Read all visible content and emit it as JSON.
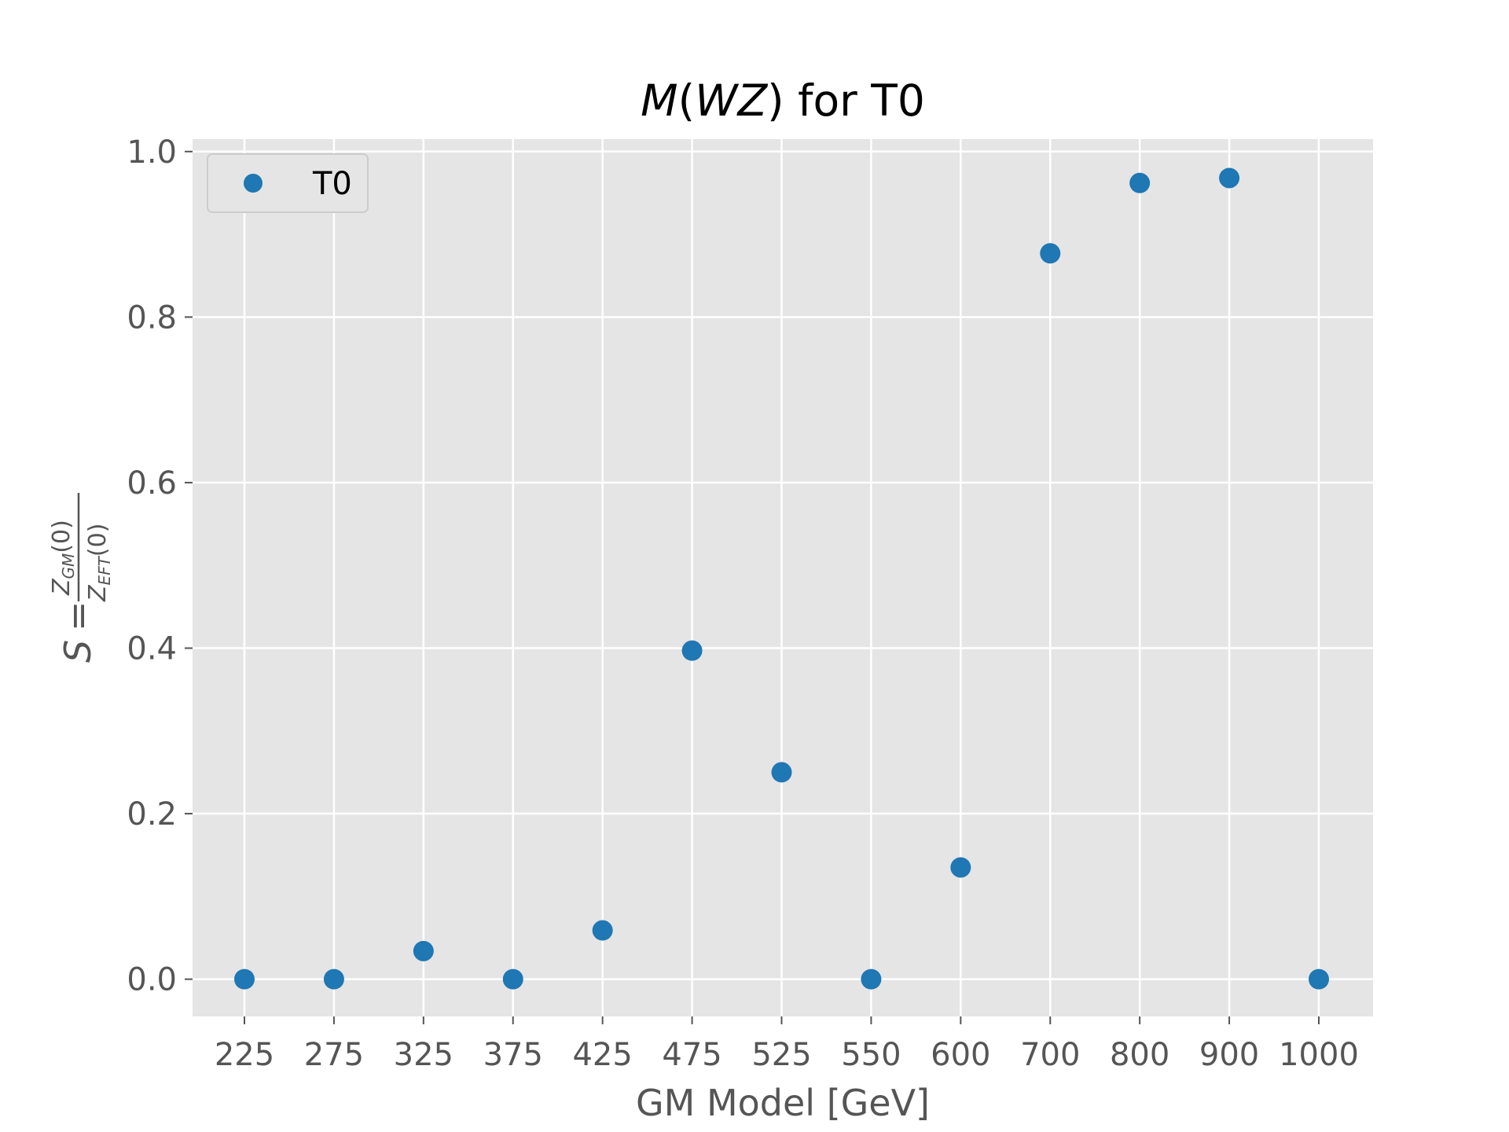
{
  "chart_data": {
    "type": "scatter",
    "title": "M(WZ) for T0",
    "title_parts": {
      "italic_m": "M",
      "open": "(",
      "italic_wz": "WZ",
      "close": ")",
      "rest": " for T0"
    },
    "xlabel": "GM Model [GeV]",
    "ylabel": {
      "lhs": "S",
      "eq": "=",
      "numerator": {
        "z": "Z",
        "sub": "GM",
        "arg": "(0)"
      },
      "denominator": {
        "z": "Z",
        "sub": "EFT",
        "arg": "(0)"
      }
    },
    "categories": [
      "225",
      "275",
      "325",
      "375",
      "425",
      "475",
      "525",
      "550",
      "600",
      "700",
      "800",
      "900",
      "1000"
    ],
    "series": [
      {
        "name": "T0",
        "color": "#1f77b4",
        "values": [
          0.0,
          0.0,
          0.034,
          0.0,
          0.059,
          0.397,
          0.25,
          0.0,
          0.135,
          0.877,
          0.962,
          0.968,
          0.0
        ]
      }
    ],
    "ylim": [
      -0.045,
      1.015
    ],
    "yticks": [
      "0.0",
      "0.2",
      "0.4",
      "0.6",
      "0.8",
      "1.0"
    ],
    "ytick_values": [
      0.0,
      0.2,
      0.4,
      0.6,
      0.8,
      1.0
    ],
    "grid": true,
    "legend": {
      "position": "top-left",
      "label": "T0"
    },
    "colors": {
      "plot_background": "#e5e5e5",
      "grid": "#ffffff",
      "marker": "#1f77b4",
      "text": "#555555"
    }
  }
}
